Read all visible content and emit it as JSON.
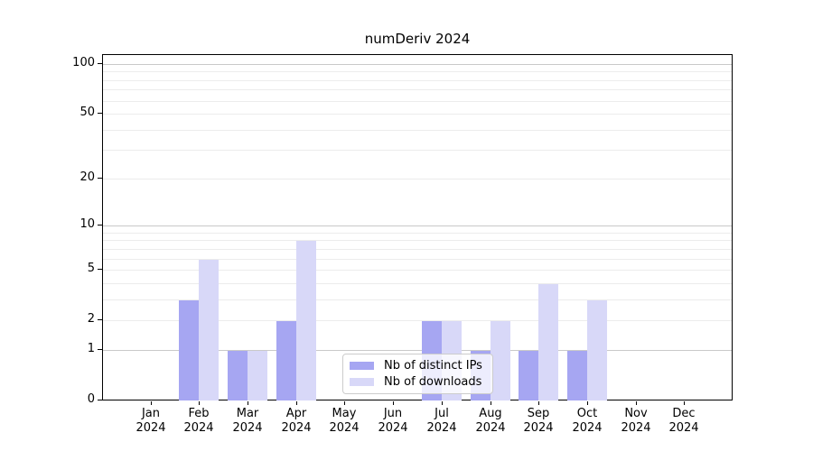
{
  "chart_data": {
    "type": "bar",
    "title": "numDeriv 2024",
    "categories": [
      "Jan",
      "Feb",
      "Mar",
      "Apr",
      "May",
      "Jun",
      "Jul",
      "Aug",
      "Sep",
      "Oct",
      "Nov",
      "Dec"
    ],
    "year_label": "2024",
    "series": [
      {
        "name": "Nb of distinct IPs",
        "color": "#a6a6f2",
        "values": [
          0,
          3,
          1,
          2,
          0,
          0,
          2,
          1,
          1,
          1,
          0,
          0
        ]
      },
      {
        "name": "Nb of downloads",
        "color": "#d8d8f8",
        "values": [
          0,
          6,
          1,
          8,
          0,
          0,
          2,
          2,
          4,
          3,
          0,
          0
        ]
      }
    ],
    "y_axis": {
      "scale": "log1p",
      "tick_labels": [
        "100",
        "50",
        "20",
        "10",
        "5",
        "2",
        "1",
        "0"
      ],
      "tick_values": [
        100,
        50,
        20,
        10,
        5,
        2,
        1,
        0
      ],
      "ylim": [
        0,
        115
      ],
      "major_gridlines": [
        1,
        10,
        100
      ],
      "minor_gridlines": [
        2,
        3,
        4,
        5,
        6,
        7,
        8,
        9,
        20,
        30,
        40,
        50,
        60,
        70,
        80,
        90
      ]
    },
    "x_axis": {
      "label_format": "month over year"
    },
    "legend_position": "lower center",
    "colors": {
      "grid_minor": "#ececec",
      "grid_major": "#c9c9c9",
      "axis": "#000000",
      "background": "#ffffff"
    }
  }
}
